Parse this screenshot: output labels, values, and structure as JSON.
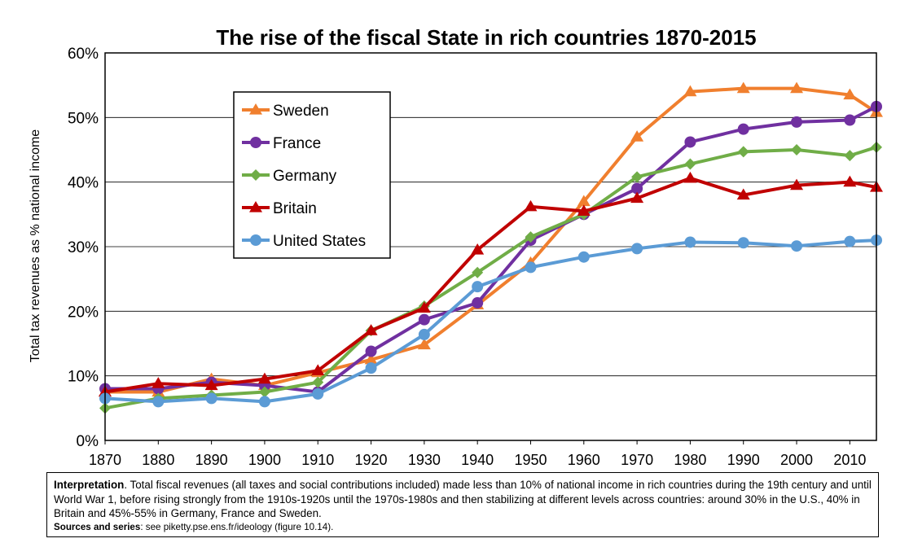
{
  "chart_data": {
    "type": "line",
    "title": "The rise of the fiscal State in rich countries 1870-2015",
    "ylabel": "Total tax revenues as % national income",
    "xlabel": "",
    "xlim": [
      1870,
      2015
    ],
    "ylim": [
      0,
      60
    ],
    "x_ticks": [
      "1870",
      "1880",
      "1890",
      "1900",
      "1910",
      "1920",
      "1930",
      "1940",
      "1950",
      "1960",
      "1970",
      "1980",
      "1990",
      "2000",
      "2010"
    ],
    "y_ticks": [
      "0%",
      "10%",
      "20%",
      "30%",
      "40%",
      "50%",
      "60%"
    ],
    "grid": true,
    "legend_position": "top-left",
    "x": [
      1870,
      1880,
      1890,
      1900,
      1910,
      1920,
      1930,
      1940,
      1950,
      1960,
      1970,
      1980,
      1990,
      2000,
      2010,
      2015
    ],
    "series": [
      {
        "name": "Sweden",
        "color": "#F07F2E",
        "marker": "triangle",
        "values": [
          7.5,
          7.5,
          9.5,
          8.5,
          10.5,
          12.5,
          14.8,
          21.0,
          27.5,
          37.0,
          47.0,
          54.0,
          54.5,
          54.5,
          53.5,
          50.8
        ]
      },
      {
        "name": "France",
        "color": "#7030A0",
        "marker": "circle",
        "values": [
          8.0,
          8.0,
          9.0,
          8.5,
          7.5,
          13.8,
          18.7,
          21.3,
          31.0,
          35.0,
          39.0,
          46.2,
          48.2,
          49.3,
          49.6,
          51.7
        ]
      },
      {
        "name": "Germany",
        "color": "#70AD47",
        "marker": "diamond",
        "values": [
          5.0,
          6.5,
          7.0,
          7.5,
          9.0,
          17.0,
          20.8,
          26.0,
          31.5,
          35.0,
          40.8,
          42.8,
          44.7,
          45.0,
          44.1,
          45.4
        ]
      },
      {
        "name": "Britain",
        "color": "#C00000",
        "marker": "triangle",
        "values": [
          7.5,
          8.8,
          8.5,
          9.5,
          10.8,
          17.0,
          20.5,
          29.5,
          36.2,
          35.5,
          37.5,
          40.6,
          38.0,
          39.5,
          40.0,
          39.2
        ]
      },
      {
        "name": "United States",
        "color": "#5B9BD5",
        "marker": "circle",
        "values": [
          6.5,
          6.0,
          6.5,
          6.0,
          7.2,
          11.2,
          16.4,
          23.8,
          26.8,
          28.4,
          29.7,
          30.7,
          30.6,
          30.1,
          30.8,
          31.0
        ]
      }
    ]
  },
  "note": {
    "interpretation_label": "Interpretation",
    "interpretation_text": ". Total fiscal revenues (all taxes and social contributions included) made less than 10% of national income in rich countries during the 19th century and until World War 1, before rising strongly from the 1910s-1920s until the 1970s-1980s and then stabilizing at different levels across countries: around 30% in the U.S., 40% in Britain and 45%-55% in Germany, France and Sweden.",
    "sources_label": "Sources and series",
    "sources_text": ": see piketty.pse.ens.fr/ideology (figure 10.14)."
  }
}
